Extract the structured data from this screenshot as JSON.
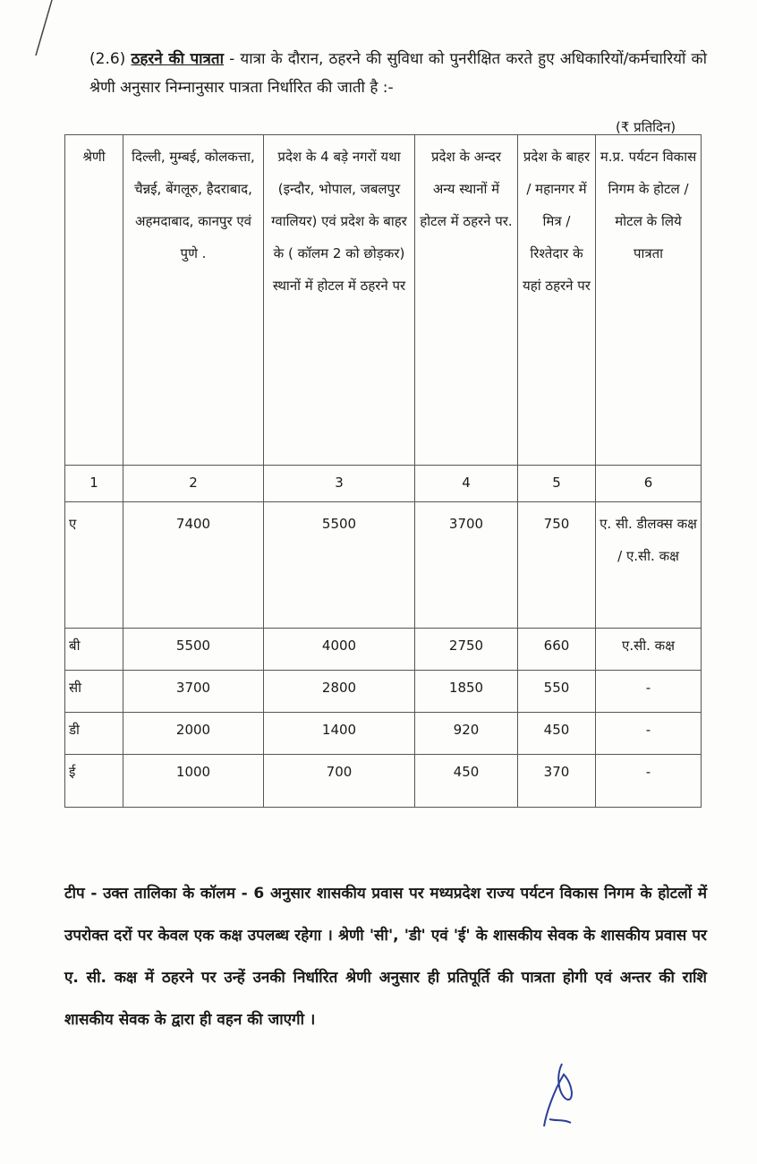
{
  "section": {
    "number": "(2.6)",
    "heading": "ठहरने की पात्रता",
    "text": " - यात्रा के दौरान, ठहरने की सुविधा को पुनरीक्षित करते हुए अधिकारियों/कर्मचारियों को श्रेणी अनुसार निम्नानुसार पात्रता निर्धारित की जाती है :-"
  },
  "unit": "(₹ प्रतिदिन)",
  "table": {
    "headers": [
      "श्रेणी",
      "दिल्ली, मुम्बई, कोलकत्ता, चैन्नई, बेंगलूरु, हैदराबाद, अहमदाबाद, कानपुर एवं पुणे .",
      "प्रदेश के 4 बड़े नगरों यथा (इन्दौर, भोपाल, जबलपुर ग्वालियर) एवं प्रदेश के बाहर के ( कॉलम 2 को छोड़कर) स्थानों में होटल में ठहरने पर",
      "प्रदेश के अन्दर अन्य स्थानों में होटल में ठहरने पर.",
      "प्रदेश के बाहर / महानगर में मित्र / रिश्तेदार के यहां ठहरने पर",
      "म.प्र. पर्यटन विकास निगम के होटल / मोटल के लिये पात्रता"
    ],
    "column_numbers": [
      "1",
      "2",
      "3",
      "4",
      "5",
      "6"
    ],
    "rows": [
      [
        "ए",
        "7400",
        "5500",
        "3700",
        "750",
        "ए. सी. डीलक्स कक्ष / ए.सी. कक्ष"
      ],
      [
        "बी",
        "5500",
        "4000",
        "2750",
        "660",
        "ए.सी. कक्ष"
      ],
      [
        "सी",
        "3700",
        "2800",
        "1850",
        "550",
        "-"
      ],
      [
        "डी",
        "2000",
        "1400",
        "920",
        "450",
        "-"
      ],
      [
        "ई",
        "1000",
        "700",
        "450",
        "370",
        "-"
      ]
    ]
  },
  "note": "टीप - उक्त तालिका के कॉलम - 6 अनुसार शासकीय प्रवास पर मध्यप्रदेश राज्य पर्यटन विकास निगम के होटलों में उपरोक्त दरों पर केवल एक कक्ष उपलब्ध रहेगा । श्रेणी 'सी', 'डी' एवं 'ई' के शासकीय सेवक के शासकीय प्रवास पर ए. सी. कक्ष में ठहरने पर उन्हें उनकी निर्धारित श्रेणी अनुसार ही प्रतिपूर्ति की पात्रता होगी एवं अन्तर की राशि शासकीय सेवक के द्वारा ही वहन की जाएगी ।"
}
